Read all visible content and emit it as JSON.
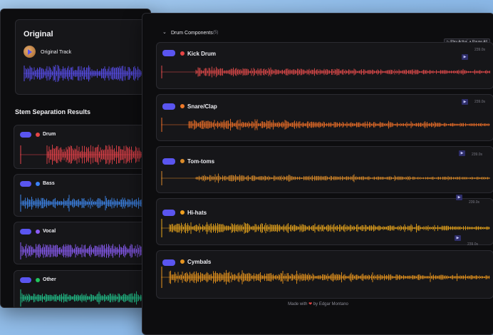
{
  "original": {
    "title": "Original",
    "track_label": "Original Track",
    "wave_color": "#5a4ff0"
  },
  "stems": {
    "title": "Stem Separation Results",
    "items": [
      {
        "label": "Drum",
        "dot_color": "#e64545",
        "wave_color": "#e6424a"
      },
      {
        "label": "Bass",
        "dot_color": "#3b82f6",
        "wave_color": "#3d86ea"
      },
      {
        "label": "Vocal",
        "dot_color": "#8b5cf6",
        "wave_color": "#8b5cf6"
      },
      {
        "label": "Other",
        "dot_color": "#22c55e",
        "wave_color": "#22c08a"
      }
    ]
  },
  "drum_components": {
    "title": "Drum Components",
    "count": "(5)",
    "play_active": "▷ Play Active",
    "pause_all": "⏸ Pause All",
    "items": [
      {
        "label": "Kick Drum",
        "dot_color": "#e64545",
        "wave_color": "#e04a4a",
        "duration": "239.0s"
      },
      {
        "label": "Snare/Clap",
        "dot_color": "#f07a2a",
        "wave_color": "#ee6f28",
        "duration": "239.0s"
      },
      {
        "label": "Tom-toms",
        "dot_color": "#d98a2a",
        "wave_color": "#d98a2a",
        "duration": "239.0s"
      },
      {
        "label": "Hi-hats",
        "dot_color": "#f0a020",
        "wave_color": "#e8a51c",
        "duration": "239.0s"
      },
      {
        "label": "Cymbals",
        "dot_color": "#e69420",
        "wave_color": "#e8951e",
        "duration": "239.0s"
      }
    ]
  },
  "footer": {
    "made_with": "Made with",
    "by": "by Edgar Montano"
  }
}
